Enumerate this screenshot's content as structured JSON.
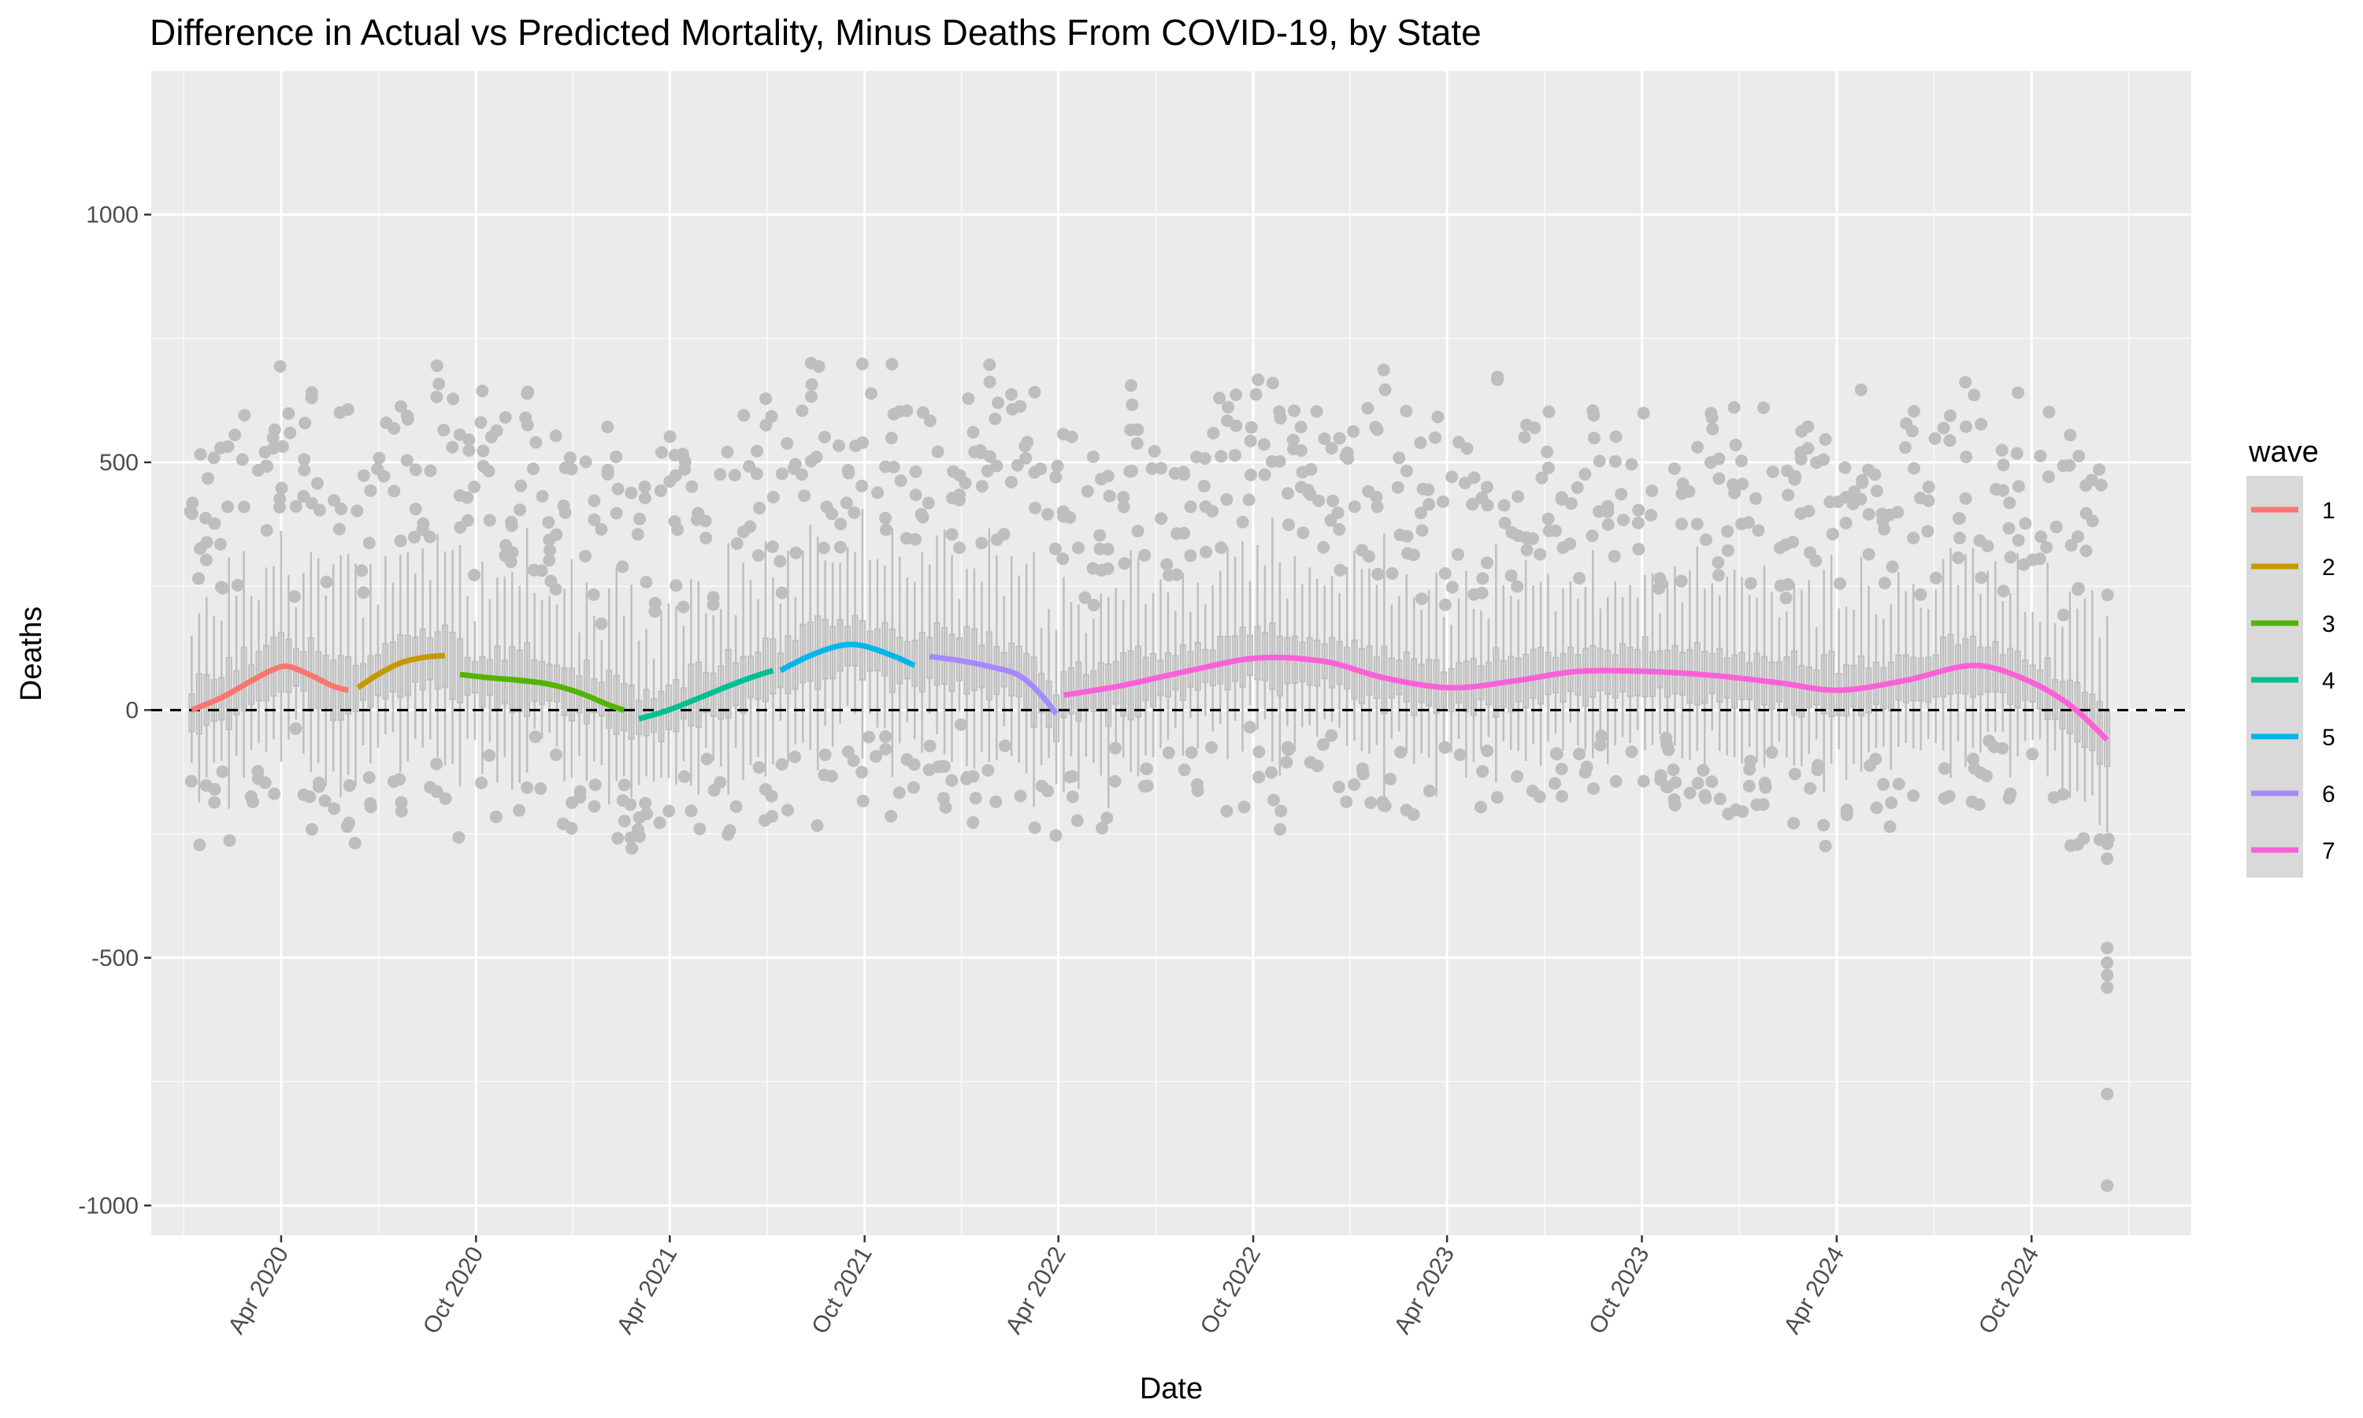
{
  "chart_data": {
    "type": "line",
    "title": "Difference in Actual vs Predicted Mortality, Minus Deaths From COVID-19, by State",
    "xlabel": "Date",
    "ylabel": "Deaths",
    "x_axis_type": "date",
    "xlim": [
      "2019-12-01",
      "2025-02-28"
    ],
    "ylim": [
      -1060,
      1290
    ],
    "grid": true,
    "reference_line": {
      "y": 0,
      "style": "dashed",
      "color": "#000000"
    },
    "x_ticks": [
      {
        "date": "2020-04-01",
        "label": "Apr 2020"
      },
      {
        "date": "2020-10-01",
        "label": "Oct 2020"
      },
      {
        "date": "2021-04-01",
        "label": "Apr 2021"
      },
      {
        "date": "2021-10-01",
        "label": "Oct 2021"
      },
      {
        "date": "2022-04-01",
        "label": "Apr 2022"
      },
      {
        "date": "2022-10-01",
        "label": "Oct 2022"
      },
      {
        "date": "2023-04-01",
        "label": "Apr 2023"
      },
      {
        "date": "2023-10-01",
        "label": "Oct 2023"
      },
      {
        "date": "2024-04-01",
        "label": "Apr 2024"
      },
      {
        "date": "2024-10-01",
        "label": "Oct 2024"
      }
    ],
    "y_ticks": [
      -1000,
      -500,
      0,
      500,
      1000
    ],
    "legend": {
      "title": "wave",
      "placement": "right"
    },
    "box_color": "#bebebe",
    "series": [
      {
        "name": "1",
        "color": "#F8766D",
        "points": [
          {
            "x": "2020-01-08",
            "y": 0
          },
          {
            "x": "2020-02-05",
            "y": 25
          },
          {
            "x": "2020-03-05",
            "y": 60
          },
          {
            "x": "2020-03-25",
            "y": 82
          },
          {
            "x": "2020-04-08",
            "y": 88
          },
          {
            "x": "2020-04-29",
            "y": 70
          },
          {
            "x": "2020-05-20",
            "y": 48
          },
          {
            "x": "2020-06-03",
            "y": 40
          }
        ]
      },
      {
        "name": "2",
        "color": "#C49A00",
        "points": [
          {
            "x": "2020-06-12",
            "y": 45
          },
          {
            "x": "2020-07-01",
            "y": 72
          },
          {
            "x": "2020-07-22",
            "y": 95
          },
          {
            "x": "2020-08-12",
            "y": 106
          },
          {
            "x": "2020-09-02",
            "y": 110
          }
        ]
      },
      {
        "name": "3",
        "color": "#53B400",
        "points": [
          {
            "x": "2020-09-16",
            "y": 72
          },
          {
            "x": "2020-10-14",
            "y": 65
          },
          {
            "x": "2020-11-11",
            "y": 60
          },
          {
            "x": "2020-12-09",
            "y": 52
          },
          {
            "x": "2021-01-06",
            "y": 35
          },
          {
            "x": "2021-02-03",
            "y": 10
          },
          {
            "x": "2021-02-17",
            "y": 0
          }
        ]
      },
      {
        "name": "4",
        "color": "#00C094",
        "points": [
          {
            "x": "2021-03-03",
            "y": -18
          },
          {
            "x": "2021-03-31",
            "y": 0
          },
          {
            "x": "2021-05-05",
            "y": 30
          },
          {
            "x": "2021-06-09",
            "y": 60
          },
          {
            "x": "2021-07-07",
            "y": 80
          }
        ]
      },
      {
        "name": "5",
        "color": "#00B6EB",
        "points": [
          {
            "x": "2021-07-14",
            "y": 80
          },
          {
            "x": "2021-08-11",
            "y": 110
          },
          {
            "x": "2021-09-08",
            "y": 130
          },
          {
            "x": "2021-09-29",
            "y": 130
          },
          {
            "x": "2021-10-27",
            "y": 110
          },
          {
            "x": "2021-11-17",
            "y": 90
          }
        ]
      },
      {
        "name": "6",
        "color": "#A58AFF",
        "points": [
          {
            "x": "2021-12-01",
            "y": 108
          },
          {
            "x": "2021-12-29",
            "y": 100
          },
          {
            "x": "2022-01-26",
            "y": 88
          },
          {
            "x": "2022-02-23",
            "y": 70
          },
          {
            "x": "2022-03-16",
            "y": 30
          },
          {
            "x": "2022-03-30",
            "y": -8
          }
        ]
      },
      {
        "name": "7",
        "color": "#FB61D7",
        "points": [
          {
            "x": "2022-04-06",
            "y": 30
          },
          {
            "x": "2022-06-01",
            "y": 50
          },
          {
            "x": "2022-08-03",
            "y": 80
          },
          {
            "x": "2022-10-05",
            "y": 105
          },
          {
            "x": "2022-12-07",
            "y": 98
          },
          {
            "x": "2023-02-01",
            "y": 65
          },
          {
            "x": "2023-04-05",
            "y": 45
          },
          {
            "x": "2023-06-07",
            "y": 60
          },
          {
            "x": "2023-08-02",
            "y": 78
          },
          {
            "x": "2023-10-04",
            "y": 78
          },
          {
            "x": "2023-12-06",
            "y": 70
          },
          {
            "x": "2024-02-07",
            "y": 55
          },
          {
            "x": "2024-04-03",
            "y": 40
          },
          {
            "x": "2024-06-05",
            "y": 60
          },
          {
            "x": "2024-08-07",
            "y": 90
          },
          {
            "x": "2024-09-25",
            "y": 62
          },
          {
            "x": "2024-11-06",
            "y": 10
          },
          {
            "x": "2024-12-11",
            "y": -60
          }
        ]
      }
    ]
  }
}
